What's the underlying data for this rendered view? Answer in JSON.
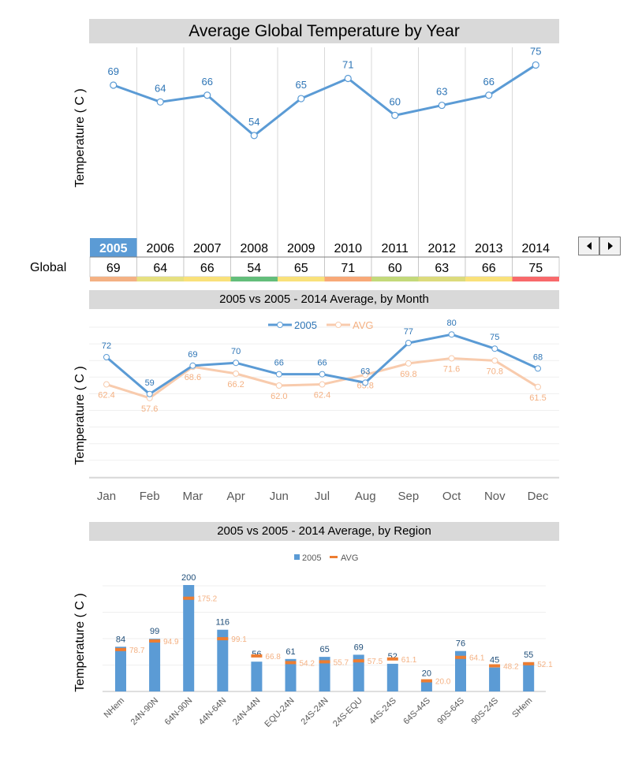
{
  "header": {
    "title": "Average Global Temperature by Year",
    "row_label": "Global"
  },
  "colors": {
    "series_main": "#5b9bd5",
    "series_avg": "#f8cbad",
    "avg_marker": "#ed7d31",
    "selected_year": "#5b9bd5",
    "grid": "#d9d9d9",
    "title_bg": "#d9d9d9"
  },
  "year_table": {
    "selected_year": "2005",
    "years": [
      "2005",
      "2006",
      "2007",
      "2008",
      "2009",
      "2010",
      "2011",
      "2012",
      "2013",
      "2014"
    ],
    "values": [
      "69",
      "64",
      "66",
      "54",
      "65",
      "71",
      "60",
      "63",
      "66",
      "75"
    ],
    "heat_colors": [
      "#f4b183",
      "#e6e080",
      "#f9e17a",
      "#63be7b",
      "#f9e17a",
      "#f8a978",
      "#c3d97a",
      "#dcdb7c",
      "#f9e17a",
      "#f8696b"
    ]
  },
  "nav": {
    "prev_icon": "triangle-left-icon",
    "next_icon": "triangle-right-icon"
  },
  "chart_data": [
    {
      "type": "line",
      "title": "Average Global Temperature by Year",
      "ylabel": "Temperature ( C )",
      "x": [
        "2005",
        "2006",
        "2007",
        "2008",
        "2009",
        "2010",
        "2011",
        "2012",
        "2013",
        "2014"
      ],
      "series": [
        {
          "values": [
            69,
            64,
            66,
            54,
            65,
            71,
            60,
            63,
            66,
            75
          ]
        }
      ]
    },
    {
      "type": "line",
      "title": "2005 vs 2005 - 2014 Average, by Month",
      "ylabel": "Temperature ( C )",
      "categories": [
        "Jan",
        "Feb",
        "Mar",
        "Apr",
        "Jun",
        "Jul",
        "Aug",
        "Sep",
        "Oct",
        "Nov",
        "Dec"
      ],
      "legend_position": "top",
      "series": [
        {
          "name": "2005",
          "values": [
            72,
            59,
            69,
            70,
            66,
            66,
            63,
            77,
            80,
            75,
            68
          ],
          "labels": [
            "72",
            "59",
            "69",
            "70",
            "66",
            "66",
            "63",
            "77",
            "80",
            "75",
            "68"
          ]
        },
        {
          "name": "AVG",
          "values": [
            62.4,
            57.6,
            68.6,
            66.2,
            62.0,
            62.4,
            65.8,
            69.8,
            71.6,
            70.8,
            61.5
          ],
          "labels": [
            "62.4",
            "57.6",
            "68.6",
            "66.2",
            "62.0",
            "62.4",
            "65.8",
            "69.8",
            "71.6",
            "70.8",
            "61.5"
          ]
        }
      ]
    },
    {
      "type": "bar",
      "title": "2005 vs 2005 - 2014 Average, by Region",
      "ylabel": "Temperature ( C )",
      "categories": [
        "NHem",
        "24N-90N",
        "64N-90N",
        "44N-64N",
        "24N-44N",
        "EQU-24N",
        "24S-24N",
        "24S-EQU",
        "44S-24S",
        "64S-44S",
        "90S-64S",
        "90S-24S",
        "SHem"
      ],
      "legend_position": "top",
      "series": [
        {
          "name": "2005",
          "values": [
            84,
            99,
            200,
            116,
            56,
            61,
            65,
            69,
            52,
            20,
            76,
            45,
            55
          ],
          "labels": [
            "84",
            "99",
            "200",
            "116",
            "56",
            "61",
            "65",
            "69",
            "52",
            "20",
            "76",
            "45",
            "55"
          ]
        },
        {
          "name": "AVG",
          "values": [
            78.7,
            94.9,
            175.2,
            99.1,
            66.8,
            54.2,
            55.7,
            57.5,
            61.1,
            20.0,
            64.1,
            48.2,
            52.1
          ],
          "labels": [
            "78.7",
            "94.9",
            "175.2",
            "99.1",
            "66.8",
            "54.2",
            "55.7",
            "57.5",
            "61.1",
            "20.0",
            "64.1",
            "48.2",
            "52.1"
          ]
        }
      ]
    }
  ]
}
